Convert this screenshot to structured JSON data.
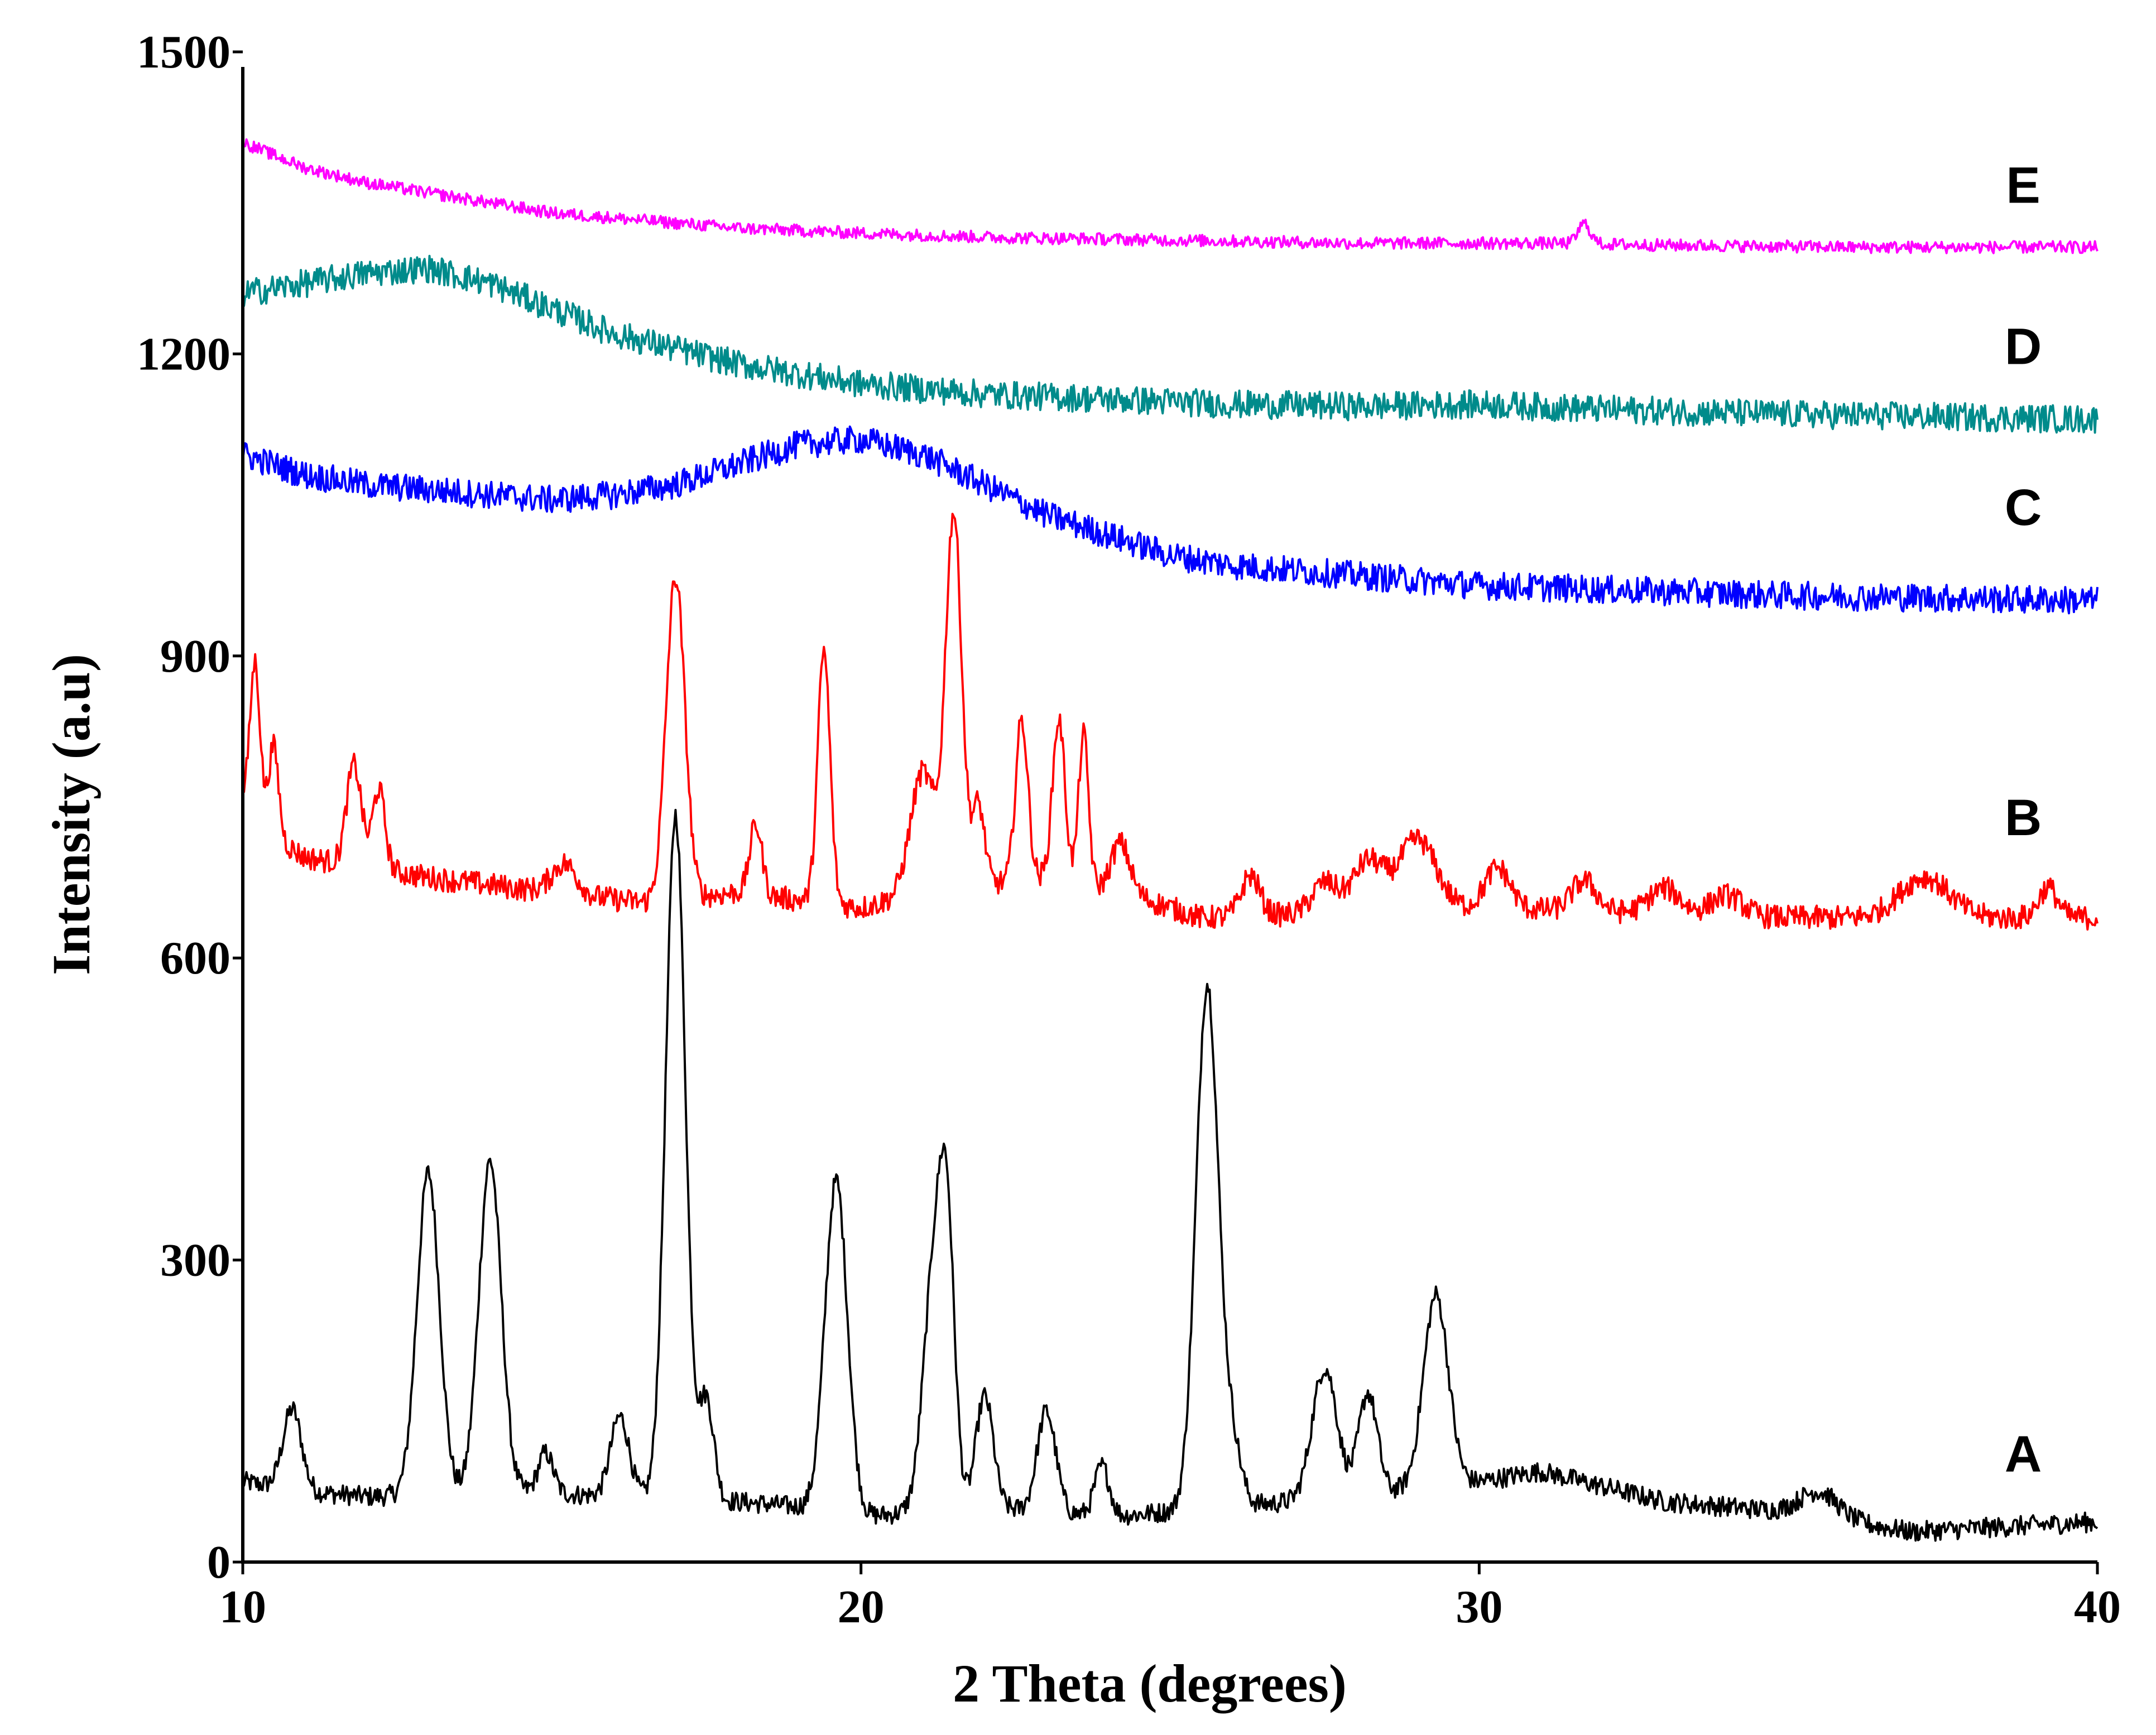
{
  "chart_data": {
    "type": "line",
    "title": "",
    "xlabel": "2 Theta (degrees)",
    "ylabel": "Intensity (a.u)",
    "xlim": [
      10,
      40
    ],
    "ylim": [
      0,
      1500
    ],
    "xticks": [
      10,
      20,
      30,
      40
    ],
    "yticks": [
      0,
      300,
      600,
      900,
      1200,
      1500
    ],
    "grid": false,
    "legend": "inline labels at right end of each trace",
    "series": [
      {
        "name": "A",
        "color": "#000000",
        "label_x": 38.8,
        "label_y": 90,
        "base": [
          [
            10,
            80
          ],
          [
            11,
            70
          ],
          [
            12,
            65
          ],
          [
            14.5,
            70
          ],
          [
            16,
            65
          ],
          [
            18,
            60
          ],
          [
            19,
            55
          ],
          [
            20,
            45
          ],
          [
            22,
            55
          ],
          [
            24,
            45
          ],
          [
            25,
            50
          ],
          [
            27,
            60
          ],
          [
            30,
            80
          ],
          [
            31,
            90
          ],
          [
            33,
            60
          ],
          [
            35,
            50
          ],
          [
            37,
            30
          ],
          [
            40,
            40
          ]
        ],
        "peaks": [
          [
            10.8,
            80,
            0.15
          ],
          [
            13.0,
            320,
            0.18
          ],
          [
            14.0,
            330,
            0.18
          ],
          [
            14.9,
            40,
            0.12
          ],
          [
            16.1,
            80,
            0.15
          ],
          [
            17.0,
            680,
            0.16
          ],
          [
            17.5,
            100,
            0.12
          ],
          [
            19.6,
            330,
            0.18
          ],
          [
            21.2,
            250,
            0.18
          ],
          [
            21.4,
            200,
            0.12
          ],
          [
            22.0,
            110,
            0.14
          ],
          [
            23.0,
            100,
            0.15
          ],
          [
            23.9,
            50,
            0.12
          ],
          [
            25.6,
            520,
            0.18
          ],
          [
            26.0,
            60,
            0.15
          ],
          [
            27.5,
            130,
            0.2
          ],
          [
            28.2,
            100,
            0.15
          ],
          [
            29.3,
            190,
            0.2
          ],
          [
            35.5,
            25,
            0.3
          ]
        ],
        "noise": 10
      },
      {
        "name": "B",
        "color": "#ff0000",
        "label_x": 38.8,
        "label_y": 722,
        "base": [
          [
            10,
            760
          ],
          [
            10.5,
            720
          ],
          [
            11,
            700
          ],
          [
            13,
            680
          ],
          [
            15,
            665
          ],
          [
            16.5,
            655
          ],
          [
            18,
            665
          ],
          [
            20,
            650
          ],
          [
            21,
            665
          ],
          [
            23,
            680
          ],
          [
            24.5,
            660
          ],
          [
            25.5,
            640
          ],
          [
            30,
            650
          ],
          [
            35,
            640
          ],
          [
            40,
            640
          ]
        ],
        "peaks": [
          [
            10.2,
            150,
            0.08
          ],
          [
            10.5,
            90,
            0.08
          ],
          [
            11.8,
            100,
            0.12
          ],
          [
            12.2,
            80,
            0.1
          ],
          [
            15.2,
            30,
            0.2
          ],
          [
            17.0,
            320,
            0.15
          ],
          [
            18.3,
            70,
            0.1
          ],
          [
            19.4,
            250,
            0.1
          ],
          [
            21.0,
            120,
            0.2
          ],
          [
            21.5,
            370,
            0.13
          ],
          [
            21.9,
            80,
            0.1
          ],
          [
            22.6,
            160,
            0.1
          ],
          [
            23.2,
            160,
            0.1
          ],
          [
            23.6,
            150,
            0.08
          ],
          [
            24.2,
            50,
            0.15
          ],
          [
            26.3,
            40,
            0.15
          ],
          [
            27.5,
            30,
            0.2
          ],
          [
            28.2,
            50,
            0.25
          ],
          [
            29.0,
            70,
            0.3
          ],
          [
            30.3,
            40,
            0.2
          ],
          [
            31.7,
            30,
            0.2
          ],
          [
            33.0,
            25,
            0.25
          ],
          [
            34.0,
            20,
            0.25
          ],
          [
            37.2,
            40,
            0.4
          ],
          [
            39.2,
            30,
            0.15
          ]
        ],
        "noise": 12
      },
      {
        "name": "C",
        "color": "#0000ff",
        "label_x": 38.8,
        "label_y": 1030,
        "base": [
          [
            10,
            1100
          ],
          [
            11,
            1080
          ],
          [
            12,
            1070
          ],
          [
            14,
            1060
          ],
          [
            15,
            1055
          ],
          [
            16,
            1060
          ],
          [
            17,
            1070
          ],
          [
            18,
            1090
          ],
          [
            19,
            1110
          ],
          [
            20,
            1115
          ],
          [
            21,
            1100
          ],
          [
            22,
            1070
          ],
          [
            23,
            1040
          ],
          [
            24,
            1020
          ],
          [
            25,
            1000
          ],
          [
            26,
            990
          ],
          [
            28,
            980
          ],
          [
            30,
            970
          ],
          [
            35,
            960
          ],
          [
            40,
            955
          ]
        ],
        "peaks": [],
        "noise": 14
      },
      {
        "name": "D",
        "color": "#008b8b",
        "label_x": 38.8,
        "label_y": 1190,
        "base": [
          [
            10,
            1260
          ],
          [
            11,
            1270
          ],
          [
            12,
            1280
          ],
          [
            13,
            1285
          ],
          [
            14,
            1270
          ],
          [
            15,
            1245
          ],
          [
            16,
            1220
          ],
          [
            17,
            1205
          ],
          [
            18,
            1190
          ],
          [
            19,
            1180
          ],
          [
            20,
            1170
          ],
          [
            21,
            1165
          ],
          [
            22,
            1160
          ],
          [
            24,
            1155
          ],
          [
            26,
            1150
          ],
          [
            28,
            1148
          ],
          [
            30,
            1150
          ],
          [
            32,
            1145
          ],
          [
            35,
            1140
          ],
          [
            40,
            1135
          ]
        ],
        "peaks": [],
        "noise": 14
      },
      {
        "name": "E",
        "color": "#ff00ff",
        "label_x": 38.8,
        "label_y": 1350,
        "base": [
          [
            10,
            1410
          ],
          [
            11,
            1385
          ],
          [
            12,
            1370
          ],
          [
            13,
            1360
          ],
          [
            14,
            1350
          ],
          [
            15,
            1340
          ],
          [
            16,
            1335
          ],
          [
            17,
            1330
          ],
          [
            18,
            1325
          ],
          [
            20,
            1320
          ],
          [
            22,
            1316
          ],
          [
            25,
            1313
          ],
          [
            28,
            1310
          ],
          [
            31,
            1310
          ],
          [
            33,
            1308
          ],
          [
            36,
            1306
          ],
          [
            40,
            1306
          ]
        ],
        "peaks": [
          [
            31.7,
            20,
            0.1
          ]
        ],
        "noise": 6
      }
    ]
  }
}
